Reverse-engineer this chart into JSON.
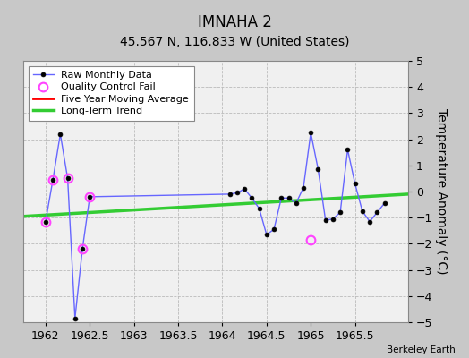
{
  "title": "IMNAHA 2",
  "subtitle": "45.567 N, 116.833 W (United States)",
  "credit": "Berkeley Earth",
  "ylabel": "Temperature Anomaly (°C)",
  "xlim": [
    1961.75,
    1966.1
  ],
  "ylim": [
    -5,
    5
  ],
  "xticks": [
    1962,
    1962.5,
    1963,
    1963.5,
    1964,
    1964.5,
    1965,
    1965.5
  ],
  "yticks": [
    -5,
    -4,
    -3,
    -2,
    -1,
    0,
    1,
    2,
    3,
    4,
    5
  ],
  "background_color": "#c8c8c8",
  "plot_background_color": "#f0f0f0",
  "raw_x": [
    1962.0,
    1962.083,
    1962.167,
    1962.25,
    1962.333,
    1962.417,
    1962.5,
    1964.083,
    1964.167,
    1964.25,
    1964.333,
    1964.417,
    1964.5,
    1964.583,
    1964.667,
    1964.75,
    1964.833,
    1964.917,
    1965.0,
    1965.083,
    1965.167,
    1965.25,
    1965.333,
    1965.417,
    1965.5,
    1965.583,
    1965.667,
    1965.75,
    1965.833
  ],
  "raw_y": [
    -1.15,
    0.45,
    2.2,
    0.5,
    -4.85,
    -2.2,
    -0.2,
    -0.1,
    -0.05,
    0.1,
    -0.25,
    -0.65,
    -1.65,
    -1.45,
    -0.25,
    -0.25,
    -0.45,
    0.15,
    2.25,
    0.85,
    -1.1,
    -1.05,
    -0.8,
    1.6,
    0.3,
    -0.75,
    -1.15,
    -0.8,
    -0.45
  ],
  "qc_fail_x": [
    1962.0,
    1962.083,
    1962.25,
    1962.417,
    1962.5,
    1965.0
  ],
  "qc_fail_y": [
    -1.15,
    0.45,
    0.5,
    -2.2,
    -0.2,
    -1.85
  ],
  "trend_x": [
    1961.75,
    1966.1
  ],
  "trend_y": [
    -0.95,
    -0.1
  ],
  "line_color": "#6666ff",
  "marker_color": "#000000",
  "qc_color": "#ff44ff",
  "trend_color": "#33cc33",
  "mavg_color": "#ff0000",
  "title_fontsize": 12,
  "subtitle_fontsize": 10,
  "tick_fontsize": 9,
  "ylabel_fontsize": 10,
  "legend_fontsize": 8
}
